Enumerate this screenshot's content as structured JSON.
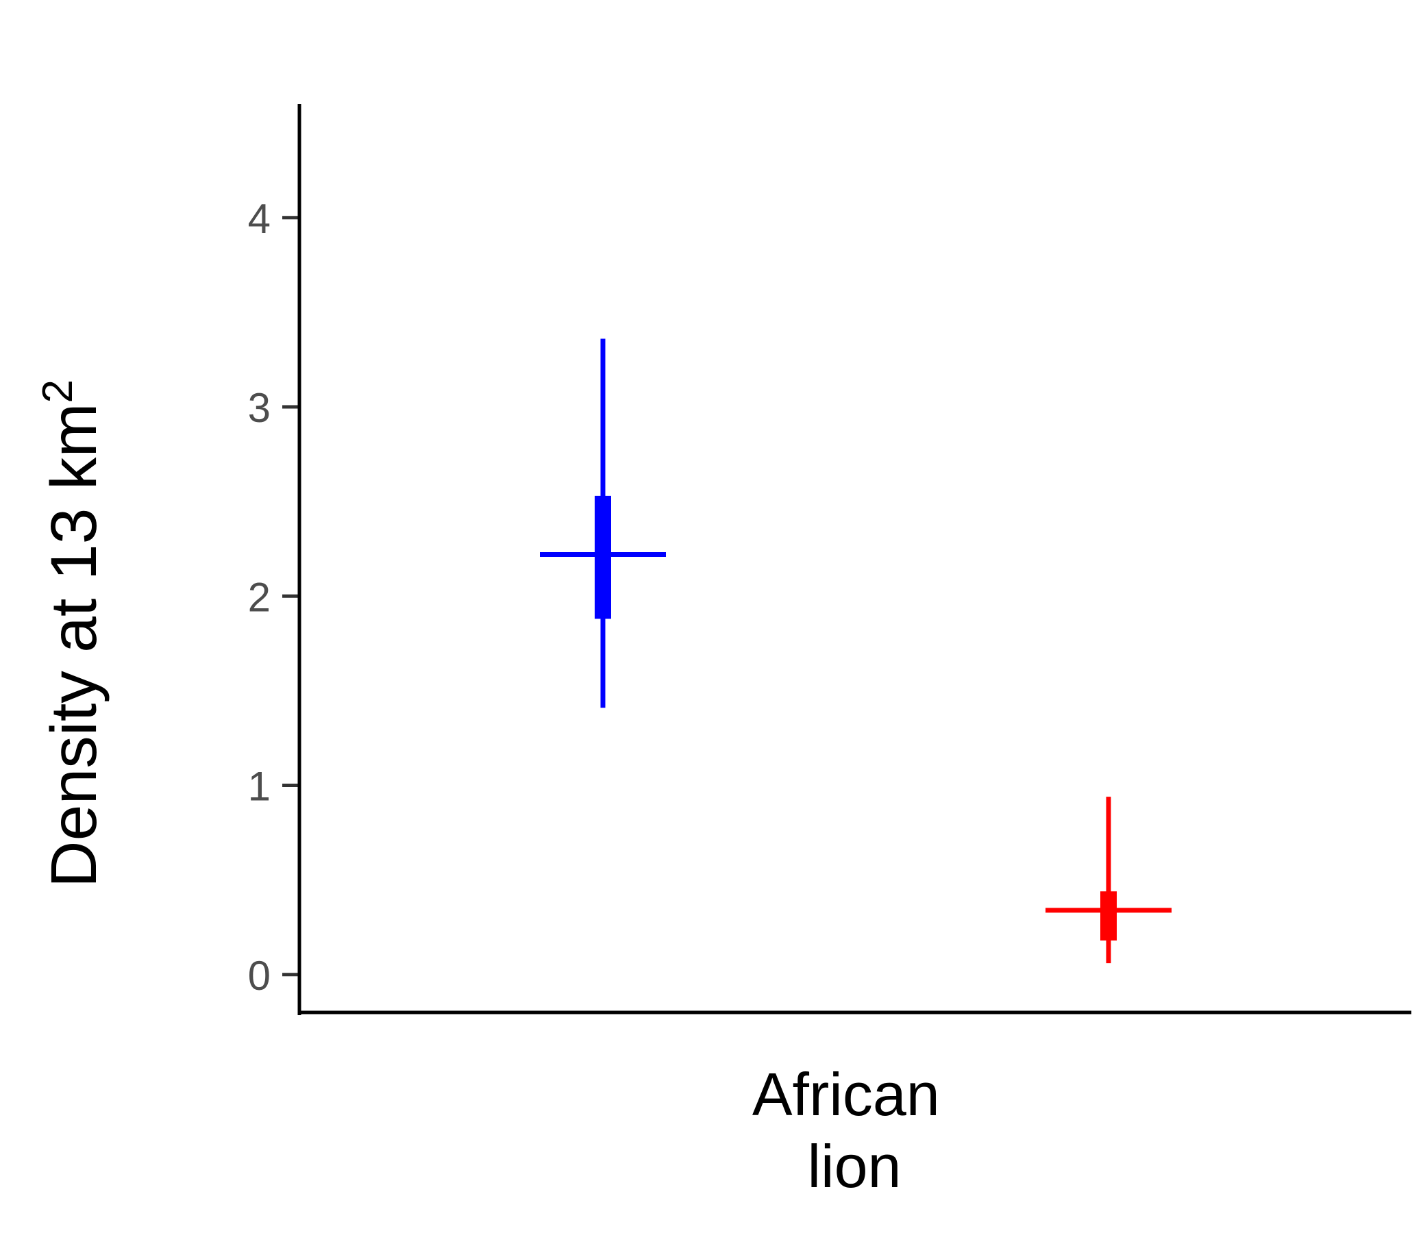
{
  "chart_data": {
    "type": "pointrange",
    "ylabel": "Density at 13 km",
    "ylabel_superscript": "2",
    "xlabel": "",
    "category_label_lines": [
      "African",
      "lion"
    ],
    "ylim": [
      -0.2,
      4.6
    ],
    "yticks": [
      0,
      1,
      2,
      3,
      4
    ],
    "ytick_labels": [
      "0",
      "1",
      "2",
      "3",
      "4"
    ],
    "grid": false,
    "series": [
      {
        "color": "#0000ff",
        "estimate": 2.22,
        "inner": [
          1.88,
          2.53
        ],
        "outer": [
          1.41,
          3.36
        ]
      },
      {
        "color": "#ff0000",
        "estimate": 0.34,
        "inner": [
          0.18,
          0.44
        ],
        "outer": [
          0.06,
          0.94
        ]
      }
    ]
  }
}
